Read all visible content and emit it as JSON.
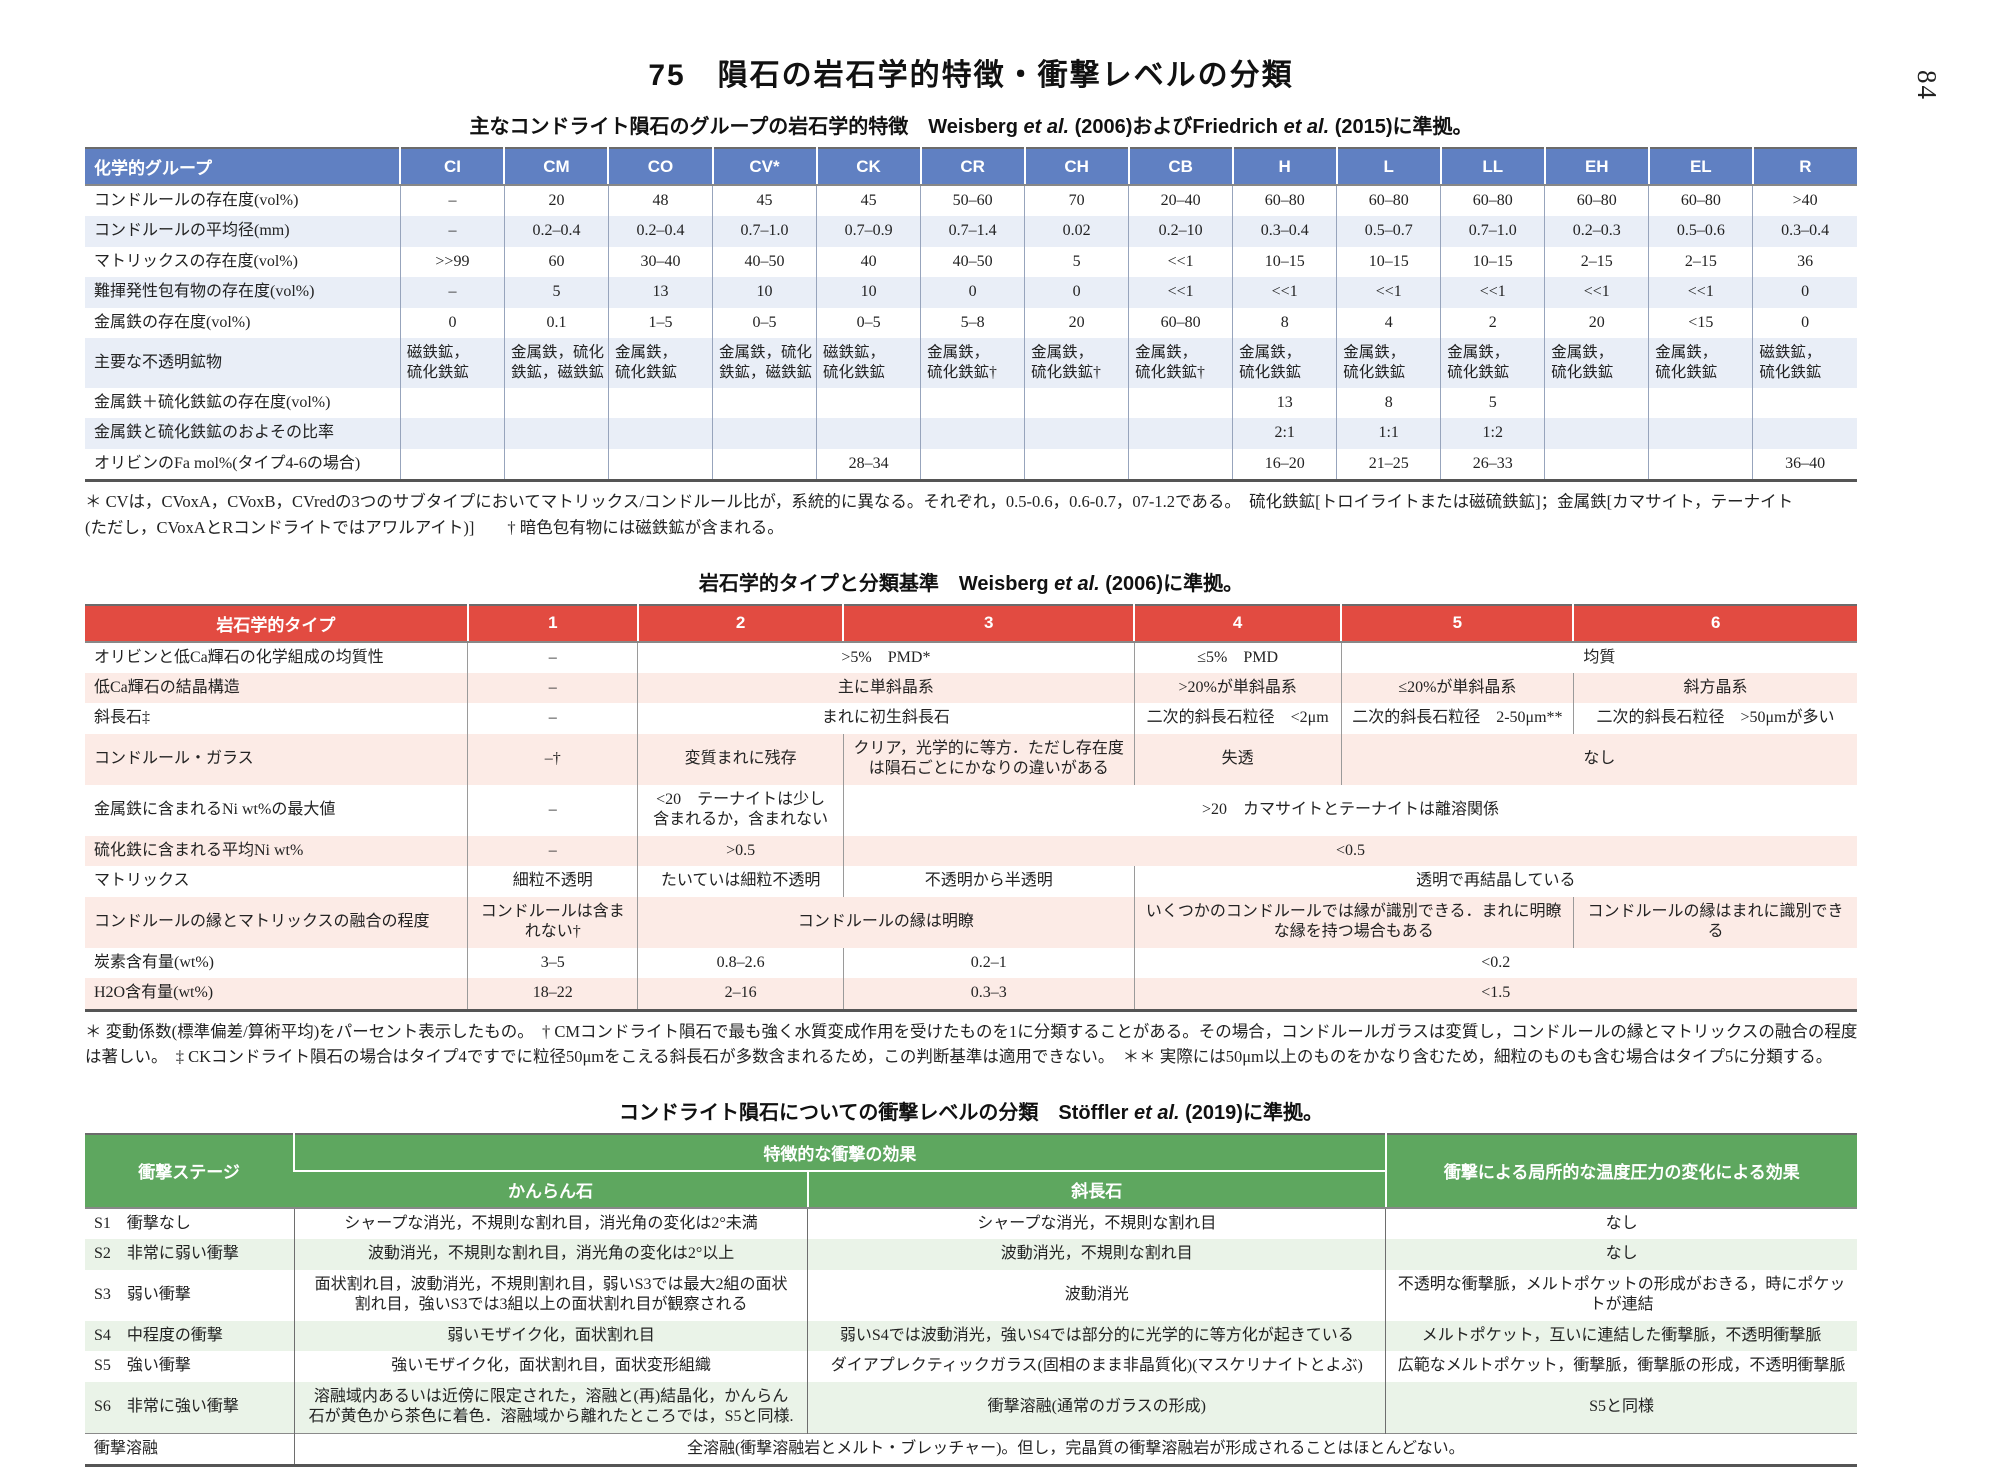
{
  "page": {
    "title": "75　隕石の岩石学的特徴・衝撃レベルの分類",
    "page_number": "84"
  },
  "colors": {
    "table1_header": "#6080c2",
    "table1_stripe": "#e9eef7",
    "table2_header": "#e24b41",
    "table2_stripe": "#fcebe6",
    "table3_header": "#5ea75f",
    "table3_stripe": "#eaf3e8"
  },
  "table1": {
    "caption_parts": [
      {
        "t": "主なコンドライト隕石のグループの岩石学的特徴　Weisberg "
      },
      {
        "t": "et al.",
        "i": true
      },
      {
        "t": " (2006)およびFriedrich "
      },
      {
        "t": "et al.",
        "i": true
      },
      {
        "t": " (2015)に準拠。"
      }
    ],
    "header": [
      "化学的グループ",
      "CI",
      "CM",
      "CO",
      "CV*",
      "CK",
      "CR",
      "CH",
      "CB",
      "H",
      "L",
      "LL",
      "EH",
      "EL",
      "R"
    ],
    "rows": [
      {
        "label": "コンドルールの存在度(vol%)",
        "values": [
          "–",
          "20",
          "48",
          "45",
          "45",
          "50–60",
          "70",
          "20–40",
          "60–80",
          "60–80",
          "60–80",
          "60–80",
          "60–80",
          ">40"
        ]
      },
      {
        "label": "コンドルールの平均径(mm)",
        "values": [
          "–",
          "0.2–0.4",
          "0.2–0.4",
          "0.7–1.0",
          "0.7–0.9",
          "0.7–1.4",
          "0.02",
          "0.2–10",
          "0.3–0.4",
          "0.5–0.7",
          "0.7–1.0",
          "0.2–0.3",
          "0.5–0.6",
          "0.3–0.4"
        ]
      },
      {
        "label": "マトリックスの存在度(vol%)",
        "values": [
          ">>99",
          "60",
          "30–40",
          "40–50",
          "40",
          "40–50",
          "5",
          "<<1",
          "10–15",
          "10–15",
          "10–15",
          "2–15",
          "2–15",
          "36"
        ]
      },
      {
        "label": "難揮発性包有物の存在度(vol%)",
        "values": [
          "–",
          "5",
          "13",
          "10",
          "10",
          "0",
          "0",
          "<<1",
          "<<1",
          "<<1",
          "<<1",
          "<<1",
          "<<1",
          "0"
        ]
      },
      {
        "label": "金属鉄の存在度(vol%)",
        "values": [
          "0",
          "0.1",
          "1–5",
          "0–5",
          "0–5",
          "5–8",
          "20",
          "60–80",
          "8",
          "4",
          "2",
          "20",
          "<15",
          "0"
        ]
      },
      {
        "label": "主要な不透明鉱物",
        "values": [
          "磁鉄鉱，\n硫化鉄鉱",
          "金属鉄，硫化\n鉄鉱，磁鉄鉱",
          "金属鉄，\n硫化鉄鉱",
          "金属鉄，硫化\n鉄鉱，磁鉄鉱",
          "磁鉄鉱，\n硫化鉄鉱",
          "金属鉄，\n硫化鉄鉱†",
          "金属鉄，\n硫化鉄鉱†",
          "金属鉄，\n硫化鉄鉱†",
          "金属鉄，\n硫化鉄鉱",
          "金属鉄，\n硫化鉄鉱",
          "金属鉄，\n硫化鉄鉱",
          "金属鉄，\n硫化鉄鉱",
          "金属鉄，\n硫化鉄鉱",
          "磁鉄鉱，\n硫化鉄鉱"
        ]
      },
      {
        "label": "金属鉄＋硫化鉄鉱の存在度(vol%)",
        "values": [
          "",
          "",
          "",
          "",
          "",
          "",
          "",
          "",
          "13",
          "8",
          "5",
          "",
          "",
          ""
        ]
      },
      {
        "label": "金属鉄と硫化鉄鉱のおよその比率",
        "values": [
          "",
          "",
          "",
          "",
          "",
          "",
          "",
          "",
          "2:1",
          "1:1",
          "1:2",
          "",
          "",
          ""
        ]
      },
      {
        "label": "オリビンのFa mol%(タイプ4-6の場合)",
        "values": [
          "",
          "",
          "",
          "",
          "28–34",
          "",
          "",
          "",
          "16–20",
          "21–25",
          "26–33",
          "",
          "",
          "36–40"
        ]
      }
    ],
    "footnote_lines": [
      "＊ CVは，CVoxA，CVoxB，CVredの3つのサブタイプにおいてマトリックス/コンドルール比が，系統的に異なる。それぞれ，0.5-0.6，0.6-0.7，07-1.2である。　硫化鉄鉱[トロイライトまたは磁硫鉄鉱]；金属鉄[カマサイト，テーナイト",
      "(ただし，CVoxAとRコンドライトではアワルアイト)]　　† 暗色包有物には磁鉄鉱が含まれる。"
    ]
  },
  "table2": {
    "caption_parts": [
      {
        "t": "岩石学的タイプと分類基準　Weisberg "
      },
      {
        "t": "et al.",
        "i": true
      },
      {
        "t": " (2006)に準拠。"
      }
    ],
    "header": [
      "岩石学的タイプ",
      "1",
      "2",
      "3",
      "4",
      "5",
      "6"
    ],
    "rows": [
      {
        "label": "オリビンと低Ca輝石の化学組成の均質性",
        "cells": [
          {
            "t": "–"
          },
          {
            "t": ">5%　PMD*",
            "s": 2
          },
          {
            "t": "≤5%　PMD"
          },
          {
            "t": "均質",
            "s": 2
          }
        ]
      },
      {
        "label": "低Ca輝石の結晶構造",
        "cells": [
          {
            "t": "–"
          },
          {
            "t": "主に単斜晶系",
            "s": 2
          },
          {
            "t": ">20%が単斜晶系"
          },
          {
            "t": "≤20%が単斜晶系"
          },
          {
            "t": "斜方晶系"
          }
        ]
      },
      {
        "label": "斜長石‡",
        "cells": [
          {
            "t": "–"
          },
          {
            "t": "まれに初生斜長石",
            "s": 2
          },
          {
            "t": "二次的斜長石粒径　<2μm"
          },
          {
            "t": "二次的斜長石粒径　2-50μm**"
          },
          {
            "t": "二次的斜長石粒径　>50μmが多い"
          }
        ]
      },
      {
        "label": "コンドルール・ガラス",
        "cells": [
          {
            "t": "–†"
          },
          {
            "t": "変質まれに残存"
          },
          {
            "t": "クリア，光学的に等方．ただし存在度\nは隕石ごとにかなりの違いがある"
          },
          {
            "t": "失透"
          },
          {
            "t": "なし",
            "s": 2
          }
        ]
      },
      {
        "label": "金属鉄に含まれるNi wt%の最大値",
        "cells": [
          {
            "t": "–"
          },
          {
            "t": "<20　テーナイトは少し\n含まれるか，含まれない"
          },
          {
            "t": ">20　カマサイトとテーナイトは離溶関係",
            "s": 4
          }
        ]
      },
      {
        "label": "硫化鉄に含まれる平均Ni wt%",
        "cells": [
          {
            "t": "–"
          },
          {
            "t": ">0.5"
          },
          {
            "t": "<0.5",
            "s": 4
          }
        ]
      },
      {
        "label": "マトリックス",
        "cells": [
          {
            "t": "細粒不透明"
          },
          {
            "t": "たいていは細粒不透明"
          },
          {
            "t": "不透明から半透明"
          },
          {
            "t": "透明で再結晶している",
            "s": 3
          }
        ]
      },
      {
        "label": "コンドルールの縁とマトリックスの融合の程度",
        "cells": [
          {
            "t": "コンドルールは含ま\nれない†"
          },
          {
            "t": "コンドルールの縁は明瞭",
            "s": 2
          },
          {
            "t": "いくつかのコンドルールでは縁が識別できる．まれに明瞭\nな縁を持つ場合もある",
            "s": 2
          },
          {
            "t": "コンドルールの縁はまれに識別でき\nる"
          }
        ]
      },
      {
        "label": "炭素含有量(wt%)",
        "cells": [
          {
            "t": "3–5"
          },
          {
            "t": "0.8–2.6"
          },
          {
            "t": "0.2–1"
          },
          {
            "t": "<0.2",
            "s": 3
          }
        ]
      },
      {
        "label": "H2O含有量(wt%)",
        "cells": [
          {
            "t": "18–22"
          },
          {
            "t": "2–16"
          },
          {
            "t": "0.3–3"
          },
          {
            "t": "<1.5",
            "s": 3
          }
        ]
      }
    ],
    "footnote_lines": [
      "＊ 変動係数(標準偏差/算術平均)をパーセント表示したもの。　† CMコンドライト隕石で最も強く水質変成作用を受けたものを1に分類することがある。その場合，コンドルールガラスは変質し，コンドルールの縁とマトリックスの融合の程度",
      "は著しい。　‡ CKコンドライト隕石の場合はタイプ4ですでに粒径50μmをこえる斜長石が多数含まれるため，この判断基準は適用できない。　＊＊ 実際には50μm以上のものをかなり含むため，細粒のものも含む場合はタイプ5に分類する。"
    ]
  },
  "table3": {
    "caption_parts": [
      {
        "t": "コンドライト隕石についての衝撃レベルの分類　Stöffler "
      },
      {
        "t": "et al.",
        "i": true
      },
      {
        "t": " (2019)に準拠。"
      }
    ],
    "header": {
      "stage": "衝撃ステージ",
      "effects": "特徴的な衝撃の効果",
      "olivine": "かんらん石",
      "plagioclase": "斜長石",
      "local": "衝撃による局所的な温度圧力の変化による効果"
    },
    "rows": [
      {
        "stage": "S1　衝撃なし",
        "cells": [
          {
            "t": "シャープな消光，不規則な割れ目，消光角の変化は2°未満"
          },
          {
            "t": "シャープな消光，不規則な割れ目"
          },
          {
            "t": "なし"
          }
        ]
      },
      {
        "stage": "S2　非常に弱い衝撃",
        "cells": [
          {
            "t": "波動消光，不規則な割れ目，消光角の変化は2°以上"
          },
          {
            "t": "波動消光，不規則な割れ目"
          },
          {
            "t": "なし"
          }
        ]
      },
      {
        "stage": "S3　弱い衝撃",
        "cells": [
          {
            "t": "面状割れ目，波動消光，不規則割れ目，弱いS3では最大2組の面状\n割れ目，強いS3では3組以上の面状割れ目が観察される"
          },
          {
            "t": "波動消光"
          },
          {
            "t": "不透明な衝撃脈，メルトポケットの形成がおきる，時にポケッ\nトが連結"
          }
        ]
      },
      {
        "stage": "S4　中程度の衝撃",
        "cells": [
          {
            "t": "弱いモザイク化，面状割れ目"
          },
          {
            "t": "弱いS4では波動消光，強いS4では部分的に光学的に等方化が起きている"
          },
          {
            "t": "メルトポケット，互いに連結した衝撃脈，不透明衝撃脈"
          }
        ]
      },
      {
        "stage": "S5　強い衝撃",
        "cells": [
          {
            "t": "強いモザイク化，面状割れ目，面状変形組織"
          },
          {
            "t": "ダイアプレクティックガラス(固相のまま非晶質化)(マスケリナイトとよぶ)"
          },
          {
            "t": "広範なメルトポケット，衝撃脈，衝撃脈の形成，不透明衝撃脈"
          }
        ]
      },
      {
        "stage": "S6　非常に強い衝撃",
        "cells": [
          {
            "t": "溶融域内あるいは近傍に限定された，溶融と(再)結晶化，かんらん\n石が黄色から茶色に着色．溶融域から離れたところでは，S5と同様."
          },
          {
            "t": "衝撃溶融(通常のガラスの形成)"
          },
          {
            "t": "S5と同様"
          }
        ]
      },
      {
        "stage": "衝撃溶融",
        "cells": [
          {
            "t": "全溶融(衝撃溶融岩とメルト・ブレッチャー)。但し，完晶質の衝撃溶融岩が形成されることはほとんどない。",
            "s": 3
          }
        ]
      }
    ]
  }
}
